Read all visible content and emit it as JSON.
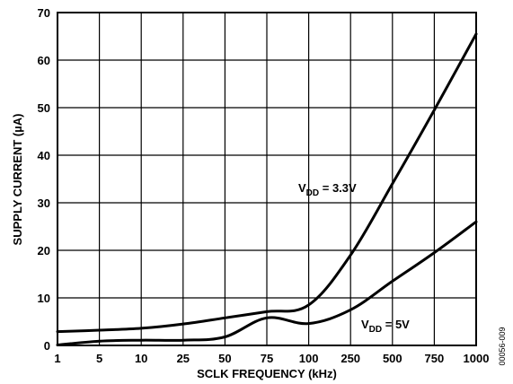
{
  "chart_data": {
    "type": "line",
    "xlabel": "SCLK FREQUENCY (kHz)",
    "ylabel": "SUPPLY CURRENT (µA)",
    "x_categories": [
      "1",
      "5",
      "10",
      "25",
      "50",
      "75",
      "100",
      "250",
      "500",
      "750",
      "1000"
    ],
    "ylim": [
      0,
      70
    ],
    "y_ticks": [
      0,
      10,
      20,
      30,
      40,
      50,
      60,
      70
    ],
    "grid": true,
    "series": [
      {
        "name": "VDD = 3.3V",
        "label_main": "V",
        "label_sub": "DD",
        "label_rest": " = 3.3V",
        "color": "#000000",
        "points": [
          [
            "1",
            2.9
          ],
          [
            "5",
            3.2
          ],
          [
            "10",
            3.6
          ],
          [
            "25",
            4.5
          ],
          [
            "50",
            5.8
          ],
          [
            "75",
            7.1
          ],
          [
            "100",
            8.5
          ],
          [
            "250",
            19.0
          ],
          [
            "500",
            34.0
          ],
          [
            "750",
            49.5
          ],
          [
            "1000",
            65.5
          ]
        ]
      },
      {
        "name": "VDD = 5V",
        "label_main": "V",
        "label_sub": "DD",
        "label_rest": " = 5V",
        "color": "#000000",
        "points": [
          [
            "1",
            0.1
          ],
          [
            "5",
            0.9
          ],
          [
            "10",
            1.1
          ],
          [
            "25",
            1.1
          ],
          [
            "50",
            1.8
          ],
          [
            "75",
            5.8
          ],
          [
            "100",
            4.6
          ],
          [
            "250",
            7.5
          ],
          [
            "500",
            13.5
          ],
          [
            "750",
            19.5
          ],
          [
            "1000",
            26.0
          ]
        ]
      }
    ]
  },
  "figure_id": "00056-009"
}
